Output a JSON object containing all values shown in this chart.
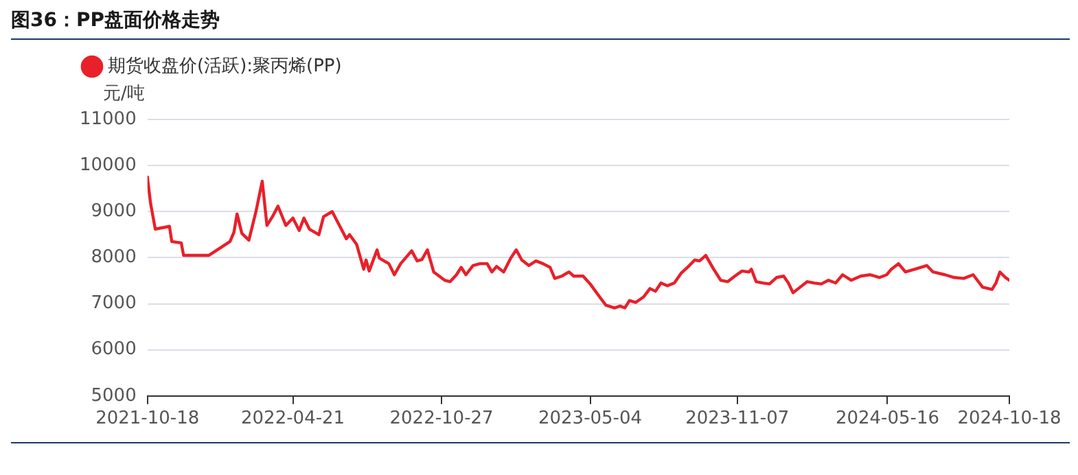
{
  "chart_data": {
    "type": "line",
    "title": "图36：PP盘面价格走势",
    "ylabel": "元/吨",
    "x": [
      "2021-10-18",
      "2021-10-22",
      "2021-10-28",
      "2021-11-15",
      "2021-11-18",
      "2021-11-30",
      "2021-12-03",
      "2022-01-04",
      "2022-01-31",
      "2022-02-05",
      "2022-02-09",
      "2022-02-15",
      "2022-02-24",
      "2022-03-05",
      "2022-03-13",
      "2022-03-19",
      "2022-03-26",
      "2022-04-02",
      "2022-04-12",
      "2022-04-21",
      "2022-04-29",
      "2022-05-05",
      "2022-05-12",
      "2022-05-24",
      "2022-05-30",
      "2022-06-10",
      "2022-06-17",
      "2022-06-28",
      "2022-07-02",
      "2022-07-11",
      "2022-07-20",
      "2022-07-23",
      "2022-07-27",
      "2022-08-06",
      "2022-08-09",
      "2022-08-21",
      "2022-08-28",
      "2022-09-05",
      "2022-09-19",
      "2022-09-26",
      "2022-10-02",
      "2022-10-09",
      "2022-10-17",
      "2022-10-31",
      "2022-11-07",
      "2022-11-15",
      "2022-11-21",
      "2022-11-27",
      "2022-12-06",
      "2022-12-15",
      "2022-12-24",
      "2022-12-30",
      "2023-01-05",
      "2023-01-14",
      "2023-01-23",
      "2023-01-30",
      "2023-02-06",
      "2023-02-15",
      "2023-02-24",
      "2023-03-05",
      "2023-03-14",
      "2023-03-20",
      "2023-03-29",
      "2023-04-07",
      "2023-04-13",
      "2023-04-25",
      "2023-05-04",
      "2023-05-16",
      "2023-05-24",
      "2023-06-04",
      "2023-06-11",
      "2023-06-17",
      "2023-06-23",
      "2023-07-01",
      "2023-07-11",
      "2023-07-19",
      "2023-07-26",
      "2023-08-02",
      "2023-08-10",
      "2023-08-19",
      "2023-08-28",
      "2023-09-06",
      "2023-09-14",
      "2023-09-20",
      "2023-09-28",
      "2023-10-08",
      "2023-10-17",
      "2023-10-26",
      "2023-11-04",
      "2023-11-13",
      "2023-11-22",
      "2023-11-25",
      "2023-12-01",
      "2023-12-10",
      "2023-12-18",
      "2023-12-27",
      "2024-01-05",
      "2024-01-11",
      "2024-01-17",
      "2024-01-26",
      "2024-02-04",
      "2024-02-13",
      "2024-02-22",
      "2024-03-02",
      "2024-03-11",
      "2024-03-20",
      "2024-03-31",
      "2024-04-12",
      "2024-04-24",
      "2024-05-06",
      "2024-05-15",
      "2024-05-21",
      "2024-05-30",
      "2024-06-08",
      "2024-06-20",
      "2024-07-05",
      "2024-07-13",
      "2024-07-28",
      "2024-08-09",
      "2024-08-21",
      "2024-09-02",
      "2024-09-14",
      "2024-09-26",
      "2024-10-01",
      "2024-10-06",
      "2024-10-13",
      "2024-10-18"
    ],
    "series": [
      {
        "name": "期货收盘价(活跃):聚丙烯(PP)",
        "color": "#e8202a",
        "values": [
          9750,
          9180,
          8620,
          8680,
          8350,
          8320,
          8050,
          8050,
          8350,
          8550,
          8950,
          8530,
          8380,
          9000,
          9660,
          8700,
          8890,
          9120,
          8700,
          8860,
          8590,
          8860,
          8620,
          8500,
          8890,
          9000,
          8770,
          8410,
          8500,
          8290,
          7750,
          7950,
          7710,
          8170,
          7990,
          7870,
          7630,
          7870,
          8150,
          7930,
          7960,
          8170,
          7690,
          7510,
          7480,
          7630,
          7790,
          7630,
          7830,
          7870,
          7870,
          7690,
          7810,
          7690,
          7990,
          8170,
          7950,
          7830,
          7930,
          7870,
          7790,
          7550,
          7600,
          7690,
          7600,
          7600,
          7430,
          7150,
          6970,
          6910,
          6950,
          6910,
          7070,
          7030,
          7150,
          7330,
          7270,
          7450,
          7390,
          7450,
          7670,
          7810,
          7950,
          7930,
          8050,
          7750,
          7510,
          7480,
          7600,
          7710,
          7690,
          7750,
          7480,
          7450,
          7430,
          7570,
          7600,
          7450,
          7240,
          7360,
          7480,
          7450,
          7430,
          7510,
          7450,
          7630,
          7510,
          7600,
          7630,
          7570,
          7630,
          7750,
          7870,
          7690,
          7750,
          7830,
          7690,
          7630,
          7570,
          7550,
          7630,
          7360,
          7310,
          7450,
          7690,
          7570,
          7510
        ]
      }
    ],
    "xlim": [
      "2021-10-18",
      "2024-10-18"
    ],
    "xticks": [
      "2021-10-18",
      "2022-04-21",
      "2022-10-27",
      "2023-05-04",
      "2023-11-07",
      "2024-05-16",
      "2024-10-18"
    ],
    "ylim": [
      5000,
      11000
    ],
    "yticks": [
      5000,
      6000,
      7000,
      8000,
      9000,
      10000,
      11000
    ],
    "grid": "y",
    "legend": "top left",
    "marker": "none",
    "line_style": "solid"
  }
}
